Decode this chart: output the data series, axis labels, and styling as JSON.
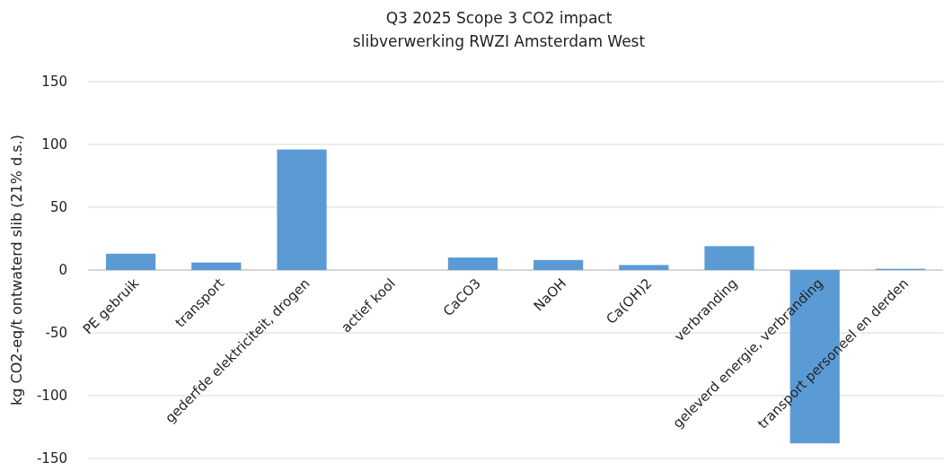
{
  "chart_data": {
    "type": "bar",
    "title": "Q3 2025  Scope 3 CO2 impact",
    "subtitle": "slibverwerking RWZI Amsterdam West",
    "ylabel": "kg CO2-eq/t ontwaterd slib (21% d.s.)",
    "categories": [
      "PE gebruik",
      "transport",
      "gederfde elektriciteit, drogen",
      "actief kool",
      "CaCO3",
      "NaOH",
      "Ca(OH)2",
      "verbranding",
      "geleverd energie, verbranding",
      "transport personeel en derden"
    ],
    "values": [
      13,
      6,
      96,
      0,
      10,
      8,
      4,
      19,
      -138,
      1
    ],
    "color": "#5b9bd5",
    "ylim": [
      -150,
      150
    ],
    "yticks": [
      -150,
      -100,
      -50,
      0,
      50,
      100,
      150
    ],
    "grid": "y"
  }
}
